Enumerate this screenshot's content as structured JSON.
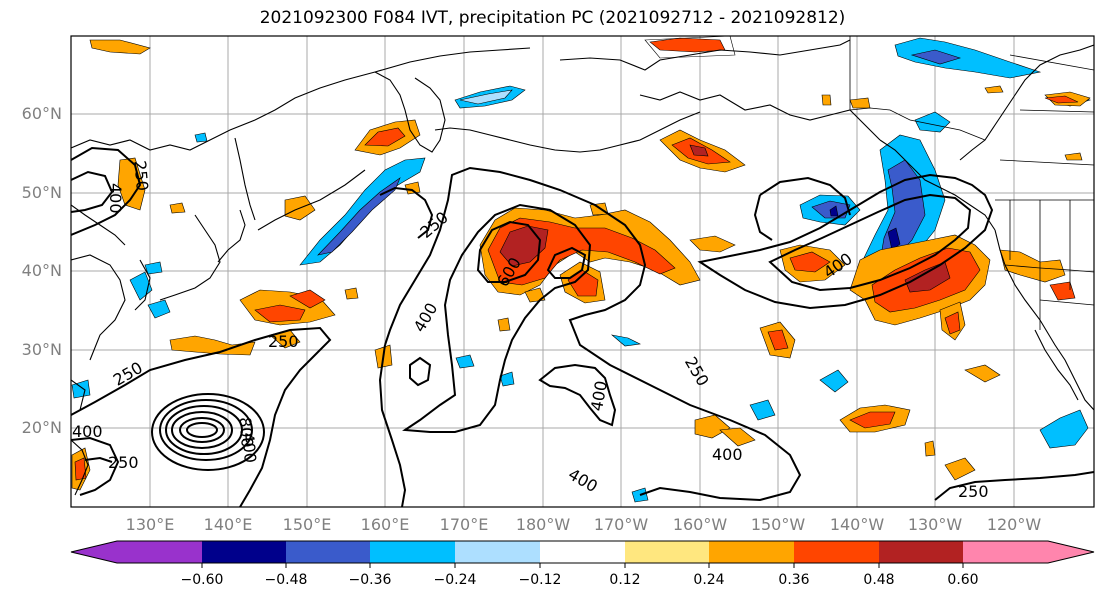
{
  "title": "2021092300 F084 IVT, precipitation PC (2021092712 - 2021092812)",
  "lat_labels": [
    "60°N",
    "50°N",
    "40°N",
    "30°N",
    "20°N"
  ],
  "lon_labels": [
    "130°E",
    "140°E",
    "150°E",
    "160°E",
    "170°E",
    "180°W",
    "170°W",
    "160°W",
    "150°W",
    "140°W",
    "130°W",
    "120°W"
  ],
  "contour_labels": [
    "250",
    "250",
    "250",
    "250",
    "250",
    "250",
    "400",
    "400",
    "400",
    "400",
    "400",
    "400",
    "400",
    "600",
    "800",
    "250",
    "400"
  ],
  "colorbar": {
    "colors": [
      "#9932CC",
      "#00008B",
      "#3A5BCB",
      "#00BFFF",
      "#ADDFFF",
      "#FFFFFF",
      "#FFE77F",
      "#FFA500",
      "#FF4500",
      "#B22222",
      "#FF85AD"
    ],
    "ticks": [
      "−0.60",
      "−0.48",
      "−0.36",
      "−0.24",
      "−0.12",
      "0.12",
      "0.24",
      "0.36",
      "0.48",
      "0.60"
    ]
  }
}
